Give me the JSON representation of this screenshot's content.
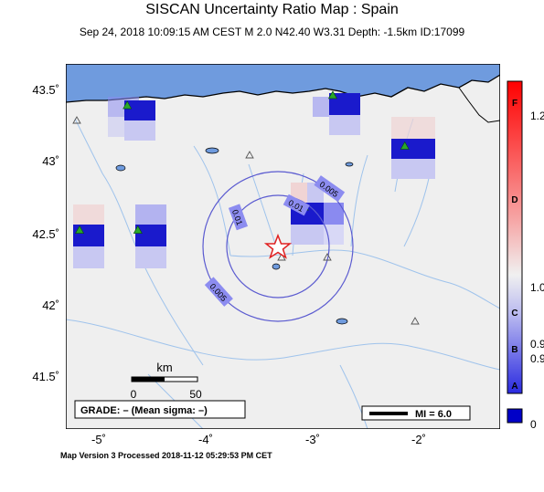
{
  "header": {
    "title": "SISCAN Uncertainty Ratio Map : Spain",
    "subtitle": "Sep 24, 2018 10:09:15 AM CEST   M 2.0   N42.40 W3.31   Depth: -1.5km   ID:17099"
  },
  "map": {
    "lat_labels": [
      "43.5˚",
      "43˚",
      "42.5˚",
      "42˚",
      "41.5˚"
    ],
    "lon_labels": [
      "-5˚",
      "-4˚",
      "-3˚",
      "-2˚"
    ],
    "contour_labels": [
      "0.005",
      "0.01",
      "0.01",
      "0.005"
    ],
    "scale_bar": {
      "title": "km",
      "tick_start": "0",
      "tick_end": "50"
    },
    "grade_box": "GRADE: – (Mean sigma: –)",
    "mi_legend": "MI = 6.0",
    "epicenter": {
      "lat": 42.4,
      "lon": -3.31,
      "symbol": "star-icon",
      "color": "#e02020"
    },
    "stations": [
      {
        "lat": 43.33,
        "lon": -4.67
      },
      {
        "lat": 43.4,
        "lon": -2.73
      },
      {
        "lat": 43.05,
        "lon": -2.05
      },
      {
        "lat": 42.63,
        "lon": -3.0
      },
      {
        "lat": 42.47,
        "lon": -4.57
      },
      {
        "lat": 42.47,
        "lon": -5.12
      }
    ]
  },
  "colorbar": {
    "values": [
      "1.2",
      "1.0",
      "0.9",
      "0.9",
      "0"
    ],
    "letters": [
      "F",
      "D",
      "C",
      "B",
      "A"
    ],
    "colors": {
      "low": "#0000c8",
      "mid": "#f0f0f0",
      "high": "#ff0000"
    }
  },
  "footer": "Map Version 3 Processed 2018-11-12 05:29:53 PM CET",
  "colors": {
    "sea": "#6f9bde",
    "land": "#efefef",
    "river": "#8fb8e8",
    "contour": "#5a5ad0"
  }
}
